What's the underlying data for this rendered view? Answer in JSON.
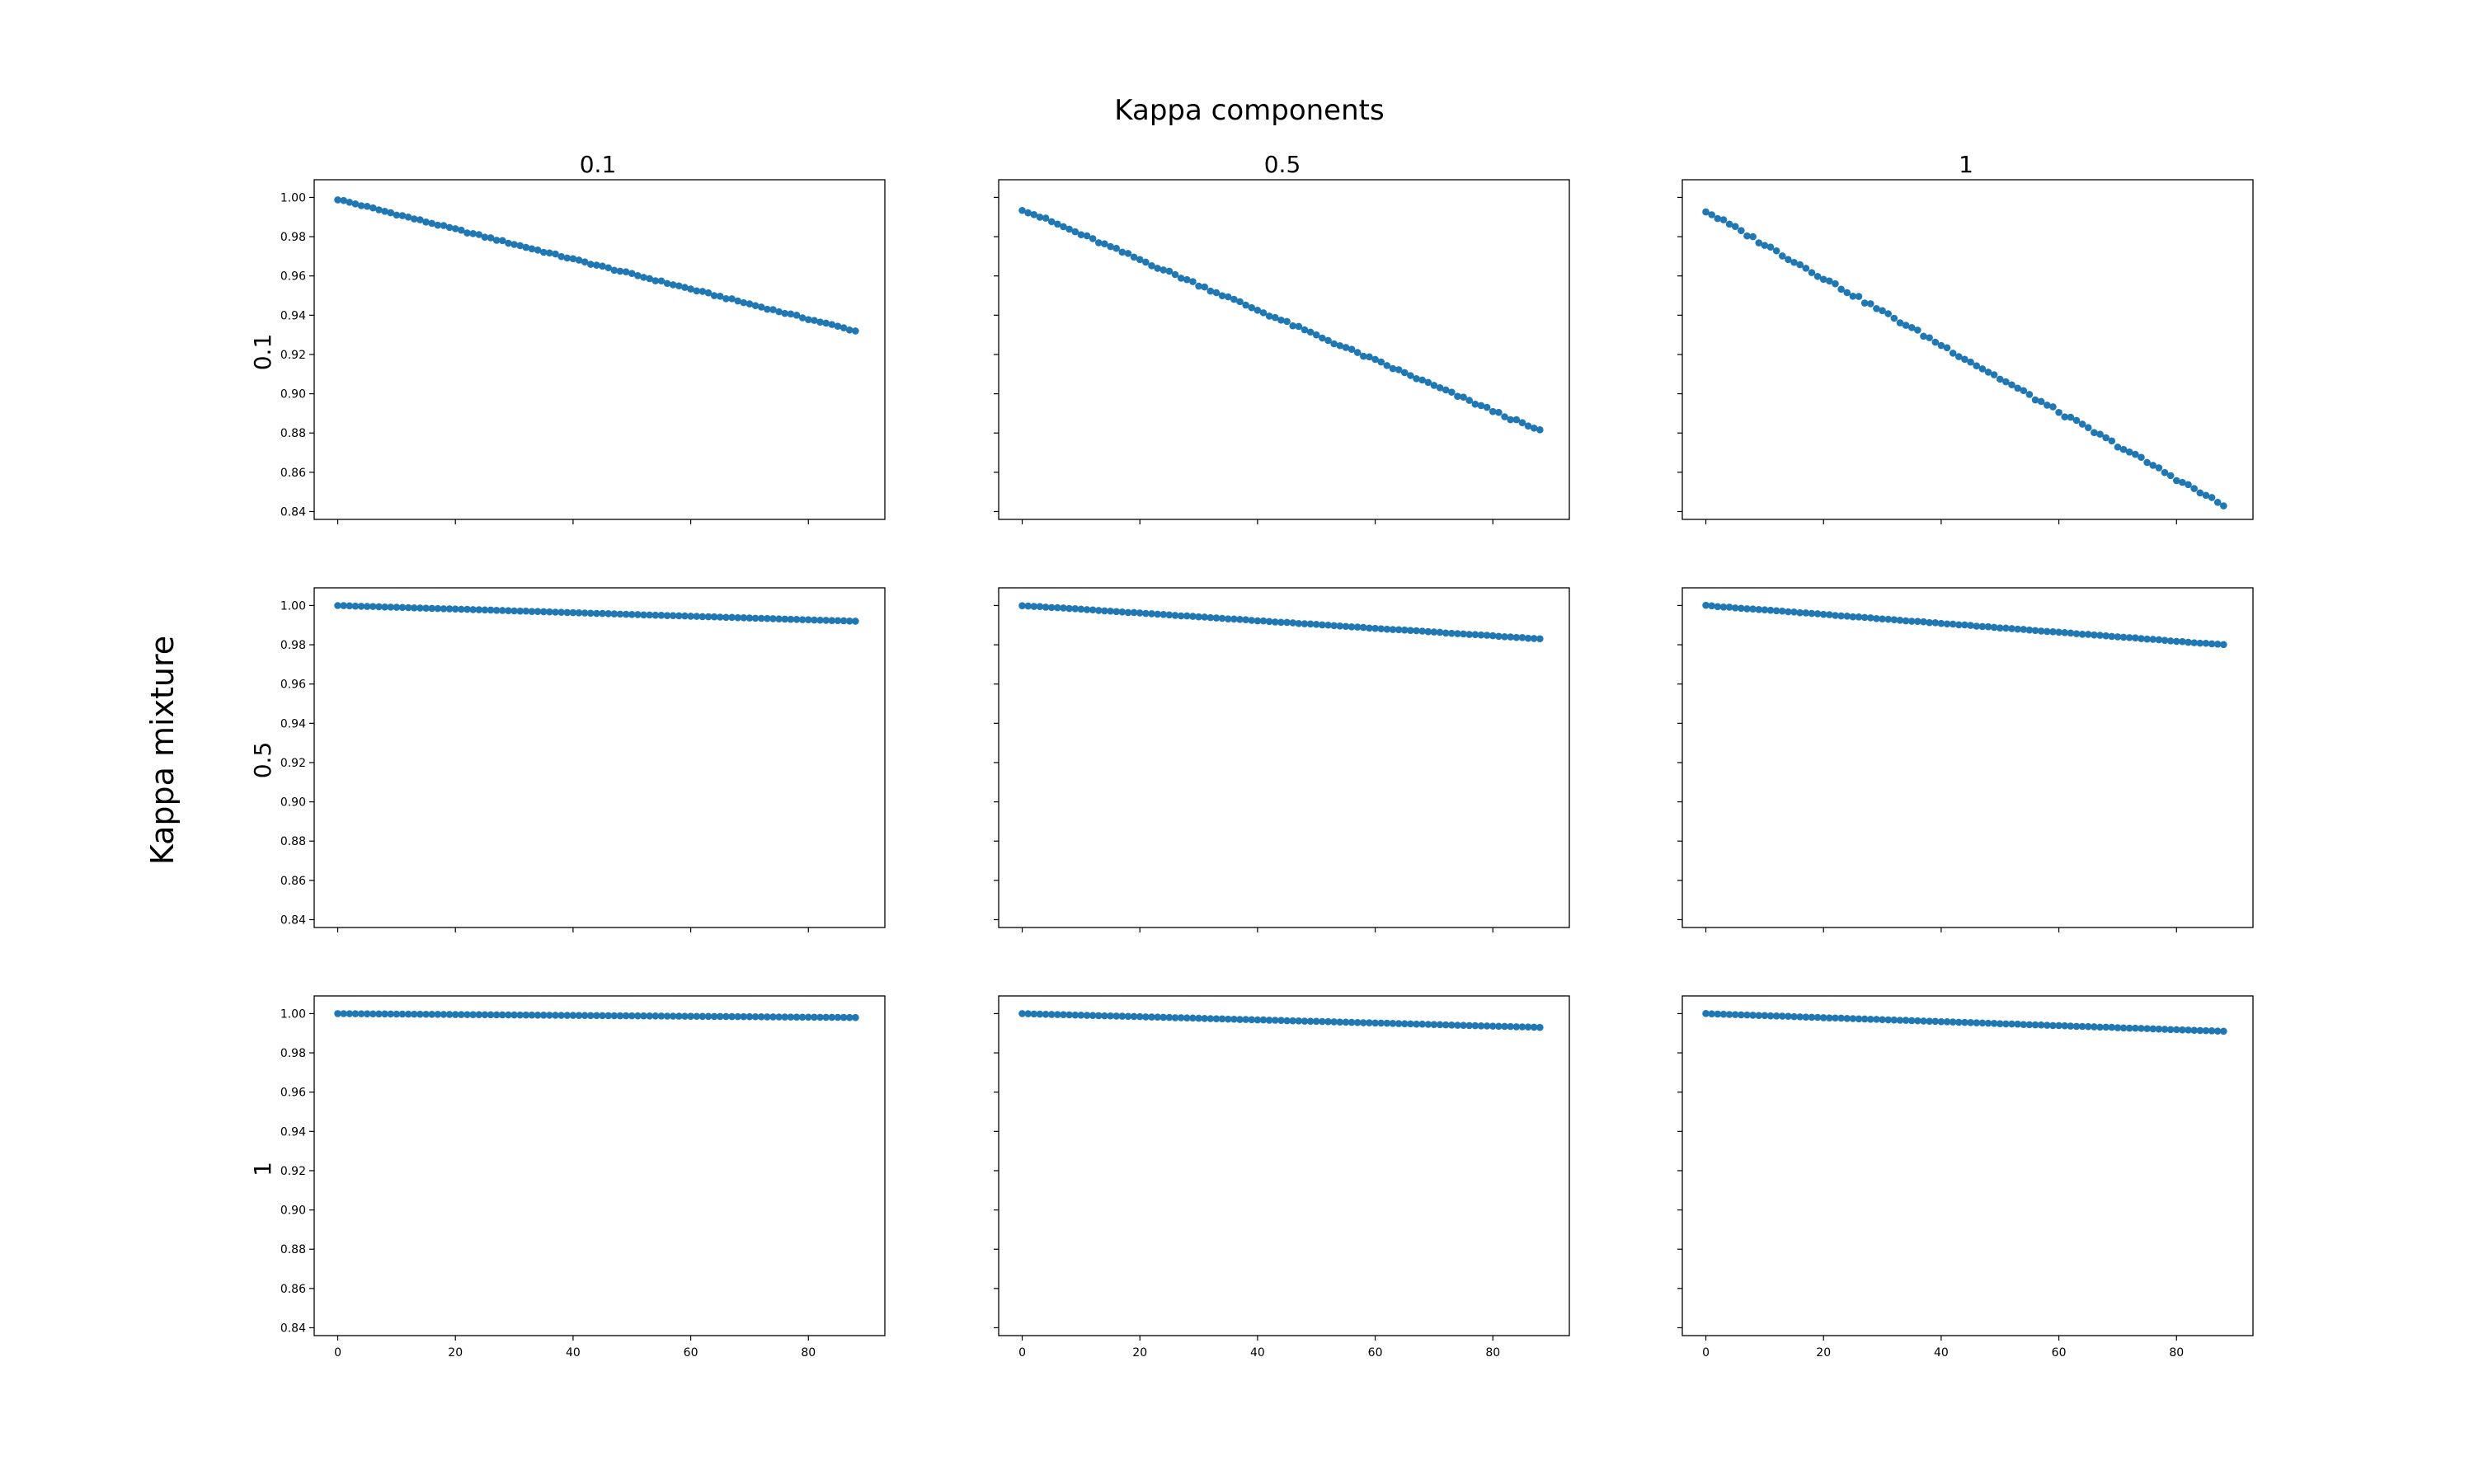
{
  "figure": {
    "suptitle": "Kappa components",
    "ylabel": "Kappa mixture",
    "col_titles": [
      "0.1",
      "0.5",
      "1"
    ],
    "row_labels": [
      "0.1",
      "0.5",
      "1"
    ],
    "marker_color": "#1f77b4"
  },
  "chart_data": [
    {
      "type": "scatter",
      "row": "0.1",
      "col": "0.1",
      "x_range": [
        0,
        88
      ],
      "y_start": 0.999,
      "y_end": 0.932,
      "xlim": [
        -4,
        93
      ],
      "ylim": [
        0.836,
        1.009
      ],
      "xticks": [
        0,
        20,
        40,
        60,
        80
      ],
      "yticks": [
        0.84,
        0.86,
        0.88,
        0.9,
        0.92,
        0.94,
        0.96,
        0.98,
        1.0
      ],
      "show_xticklabels": false,
      "show_yticklabels": true
    },
    {
      "type": "scatter",
      "row": "0.1",
      "col": "0.5",
      "x_range": [
        0,
        88
      ],
      "y_start": 0.994,
      "y_end": 0.881,
      "xlim": [
        -4,
        93
      ],
      "ylim": [
        0.836,
        1.009
      ],
      "xticks": [
        0,
        20,
        40,
        60,
        80
      ],
      "yticks": [
        0.84,
        0.86,
        0.88,
        0.9,
        0.92,
        0.94,
        0.96,
        0.98,
        1.0
      ],
      "show_xticklabels": false,
      "show_yticklabels": false
    },
    {
      "type": "scatter",
      "row": "0.1",
      "col": "1",
      "x_range": [
        0,
        88
      ],
      "y_start": 0.993,
      "y_end": 0.843,
      "xlim": [
        -4,
        93
      ],
      "ylim": [
        0.836,
        1.009
      ],
      "xticks": [
        0,
        20,
        40,
        60,
        80
      ],
      "yticks": [
        0.84,
        0.86,
        0.88,
        0.9,
        0.92,
        0.94,
        0.96,
        0.98,
        1.0
      ],
      "show_xticklabels": false,
      "show_yticklabels": false
    },
    {
      "type": "scatter",
      "row": "0.5",
      "col": "0.1",
      "x_range": [
        0,
        88
      ],
      "y_start": 1.0,
      "y_end": 0.992,
      "xlim": [
        -4,
        93
      ],
      "ylim": [
        0.836,
        1.009
      ],
      "xticks": [
        0,
        20,
        40,
        60,
        80
      ],
      "yticks": [
        0.84,
        0.86,
        0.88,
        0.9,
        0.92,
        0.94,
        0.96,
        0.98,
        1.0
      ],
      "show_xticklabels": false,
      "show_yticklabels": true
    },
    {
      "type": "scatter",
      "row": "0.5",
      "col": "0.5",
      "x_range": [
        0,
        88
      ],
      "y_start": 1.0,
      "y_end": 0.983,
      "xlim": [
        -4,
        93
      ],
      "ylim": [
        0.836,
        1.009
      ],
      "xticks": [
        0,
        20,
        40,
        60,
        80
      ],
      "yticks": [
        0.84,
        0.86,
        0.88,
        0.9,
        0.92,
        0.94,
        0.96,
        0.98,
        1.0
      ],
      "show_xticklabels": false,
      "show_yticklabels": false
    },
    {
      "type": "scatter",
      "row": "0.5",
      "col": "1",
      "x_range": [
        0,
        88
      ],
      "y_start": 1.0,
      "y_end": 0.98,
      "xlim": [
        -4,
        93
      ],
      "ylim": [
        0.836,
        1.009
      ],
      "xticks": [
        0,
        20,
        40,
        60,
        80
      ],
      "yticks": [
        0.84,
        0.86,
        0.88,
        0.9,
        0.92,
        0.94,
        0.96,
        0.98,
        1.0
      ],
      "show_xticklabels": false,
      "show_yticklabels": false
    },
    {
      "type": "scatter",
      "row": "1",
      "col": "0.1",
      "x_range": [
        0,
        88
      ],
      "y_start": 1.0,
      "y_end": 0.998,
      "xlim": [
        -4,
        93
      ],
      "ylim": [
        0.836,
        1.009
      ],
      "xticks": [
        0,
        20,
        40,
        60,
        80
      ],
      "yticks": [
        0.84,
        0.86,
        0.88,
        0.9,
        0.92,
        0.94,
        0.96,
        0.98,
        1.0
      ],
      "show_xticklabels": true,
      "show_yticklabels": true
    },
    {
      "type": "scatter",
      "row": "1",
      "col": "0.5",
      "x_range": [
        0,
        88
      ],
      "y_start": 1.0,
      "y_end": 0.993,
      "xlim": [
        -4,
        93
      ],
      "ylim": [
        0.836,
        1.009
      ],
      "xticks": [
        0,
        20,
        40,
        60,
        80
      ],
      "yticks": [
        0.84,
        0.86,
        0.88,
        0.9,
        0.92,
        0.94,
        0.96,
        0.98,
        1.0
      ],
      "show_xticklabels": true,
      "show_yticklabels": false
    },
    {
      "type": "scatter",
      "row": "1",
      "col": "1",
      "x_range": [
        0,
        88
      ],
      "y_start": 1.0,
      "y_end": 0.991,
      "xlim": [
        -4,
        93
      ],
      "ylim": [
        0.836,
        1.009
      ],
      "xticks": [
        0,
        20,
        40,
        60,
        80
      ],
      "yticks": [
        0.84,
        0.86,
        0.88,
        0.9,
        0.92,
        0.94,
        0.96,
        0.98,
        1.0
      ],
      "show_xticklabels": true,
      "show_yticklabels": false
    }
  ]
}
